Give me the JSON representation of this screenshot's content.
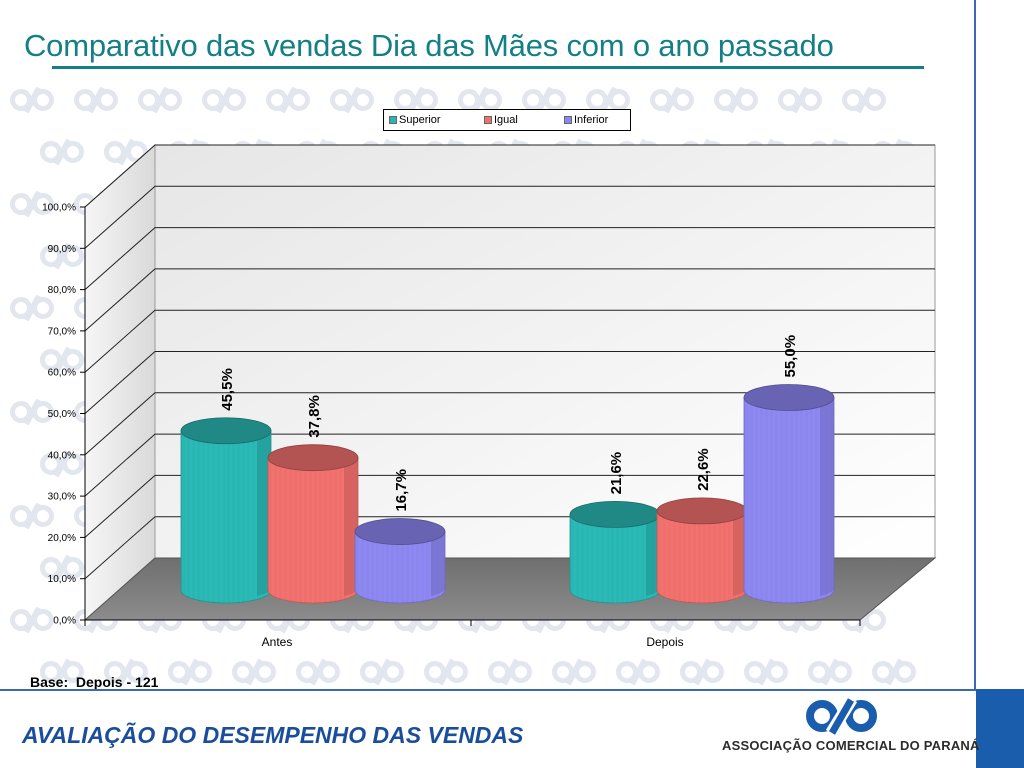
{
  "header": {
    "title": "Comparativo das vendas Dia das Mães com o ano passado"
  },
  "chart_data": {
    "type": "bar",
    "style": "3d-cylinder",
    "categories": [
      "Antes",
      "Depois"
    ],
    "series": [
      {
        "name": "Superior",
        "color": "#2ab6b2",
        "values": [
          45.5,
          21.6
        ],
        "labels": [
          "45,5%",
          "21,6%"
        ]
      },
      {
        "name": "Igual",
        "color": "#ef6f6d",
        "values": [
          37.8,
          22.6
        ],
        "labels": [
          "37,8%",
          "22,6%"
        ]
      },
      {
        "name": "Inferior",
        "color": "#8b85ee",
        "values": [
          16.7,
          55.0
        ],
        "labels": [
          "16,7%",
          "55,0%"
        ]
      }
    ],
    "y_ticks": [
      "0,0%",
      "10,0%",
      "20,0%",
      "30,0%",
      "40,0%",
      "50,0%",
      "60,0%",
      "70,0%",
      "80,0%",
      "90,0%",
      "100,0%"
    ],
    "ylim": [
      0,
      100
    ],
    "grid": true,
    "legend_position": "top-center"
  },
  "footer": {
    "base_note": "Base:  Depois - 121",
    "section_title": "AVALIAÇÃO DO DESEMPENHO DAS VENDAS",
    "brand_name": "ASSOCIAÇÃO COMERCIAL DO PARANÁ"
  },
  "colors": {
    "title": "#137f86",
    "footer_title": "#1a4e9c",
    "rule": "#3c68b4",
    "corner": "#1a5dad"
  },
  "icons": {
    "watermark": "acp-logo-pattern",
    "brand": "acp-logo-icon"
  }
}
